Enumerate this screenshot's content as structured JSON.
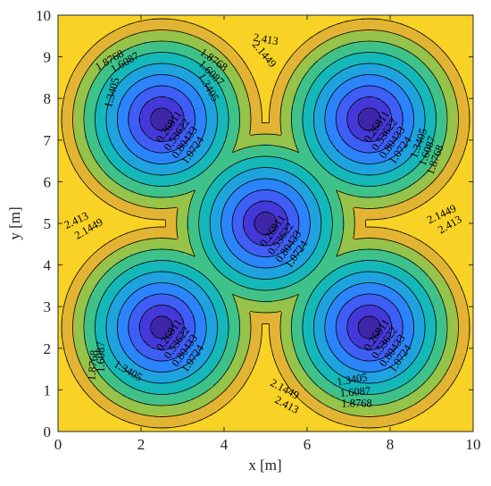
{
  "chart_data": {
    "type": "contour",
    "xlabel": "x [m]",
    "ylabel": "y [m]",
    "xlim": [
      0,
      10
    ],
    "ylim": [
      0,
      10
    ],
    "xticks": [
      0,
      2,
      4,
      6,
      8,
      10
    ],
    "yticks": [
      0,
      1,
      2,
      3,
      4,
      5,
      6,
      7,
      8,
      9,
      10
    ],
    "centers": [
      [
        2.5,
        7.5
      ],
      [
        7.5,
        7.5
      ],
      [
        5,
        5
      ],
      [
        2.5,
        2.5
      ],
      [
        7.5,
        2.5
      ]
    ],
    "field": "min distance to nearest center",
    "levels": [
      0.26811,
      0.53622,
      0.80433,
      1.0724,
      1.3405,
      1.6087,
      1.8768,
      2.1449,
      2.413
    ],
    "level_labels": [
      "0.26811",
      "0.53622",
      "0.80433",
      "1.0724",
      "1.3405",
      "1.6087",
      "1.8768",
      "2.1449",
      "2.413"
    ],
    "colors": [
      "#3e26a8",
      "#4538d8",
      "#3f5ef5",
      "#2c84fa",
      "#1fa3de",
      "#14b8b9",
      "#3fc28a",
      "#96c34a",
      "#e3b434",
      "#f8d225"
    ],
    "labeled_levels_per_center": {
      "inner": [
        0.26811,
        0.53622,
        0.80433,
        1.0724
      ]
    },
    "grid": false,
    "box": true
  }
}
